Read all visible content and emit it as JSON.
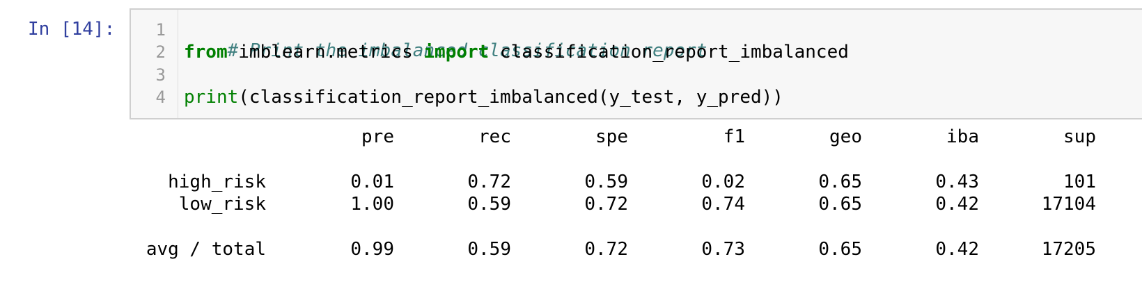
{
  "cell": {
    "prompt": "In [14]:",
    "line_numbers": [
      "1",
      "2",
      "3",
      "4"
    ],
    "code": {
      "line1_comment": "# Print the imbalanced classification report",
      "line2_from": "from",
      "line2_module": " imblearn.metrics ",
      "line2_import": "import",
      "line2_name": " classification_report_imbalanced",
      "line4_print": "print",
      "line4_rest": "(classification_report_imbalanced(y_test, y_pred))"
    }
  },
  "output": {
    "headers": [
      "pre",
      "rec",
      "spe",
      "f1",
      "geo",
      "iba",
      "sup"
    ],
    "rows": [
      {
        "label": "high_risk",
        "values": [
          "0.01",
          "0.72",
          "0.59",
          "0.02",
          "0.65",
          "0.43",
          "101"
        ]
      },
      {
        "label": "low_risk",
        "values": [
          "1.00",
          "0.59",
          "0.72",
          "0.74",
          "0.65",
          "0.42",
          "17104"
        ]
      },
      {
        "label": "avg / total",
        "values": [
          "0.99",
          "0.59",
          "0.72",
          "0.73",
          "0.65",
          "0.42",
          "17205"
        ]
      }
    ]
  }
}
